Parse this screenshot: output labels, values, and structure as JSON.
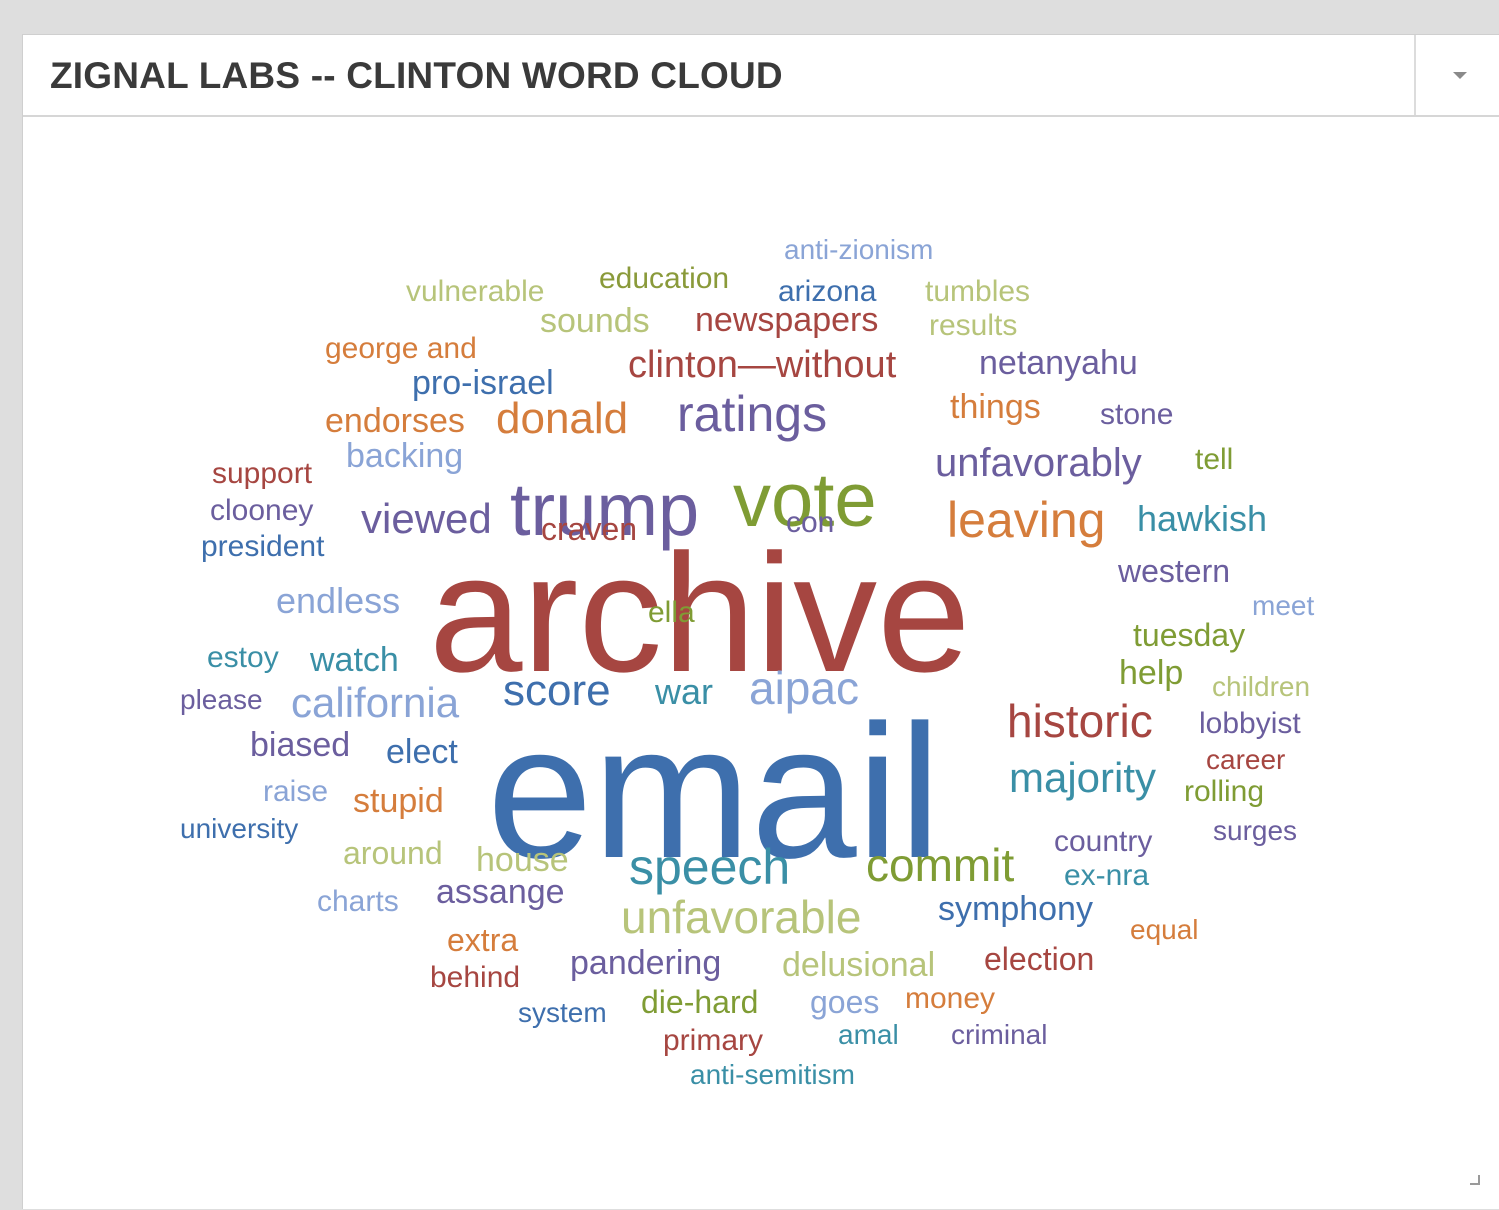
{
  "widget": {
    "title": "ZIGNAL LABS -- CLINTON WORD CLOUD",
    "menu_icon": "chevron-down-icon",
    "resize_icon": "resize-handle-icon"
  },
  "colors": {
    "red": "#a64641",
    "blue": "#3e6fad",
    "purple": "#6b5e9e",
    "green": "#7f9c34",
    "orange": "#d57d3c",
    "teal": "#3a8fa6",
    "light_green": "#b7c47a",
    "light_blue": "#8aa4d6",
    "olive": "#8a9a3a"
  },
  "word_cloud": {
    "words": [
      {
        "text": "archive",
        "color": "red",
        "weight": 100
      },
      {
        "text": "email",
        "color": "blue",
        "weight": 95
      },
      {
        "text": "vote",
        "color": "green",
        "weight": 50
      },
      {
        "text": "trump",
        "color": "purple",
        "weight": 48
      },
      {
        "text": "ratings",
        "color": "purple",
        "weight": 38
      },
      {
        "text": "leaving",
        "color": "orange",
        "weight": 36
      },
      {
        "text": "speech",
        "color": "teal",
        "weight": 36
      },
      {
        "text": "commit",
        "color": "green",
        "weight": 34
      },
      {
        "text": "historic",
        "color": "red",
        "weight": 34
      },
      {
        "text": "unfavorable",
        "color": "light_green",
        "weight": 34
      },
      {
        "text": "donald",
        "color": "orange",
        "weight": 32
      },
      {
        "text": "aipac",
        "color": "light_blue",
        "weight": 34
      },
      {
        "text": "score",
        "color": "blue",
        "weight": 32
      },
      {
        "text": "viewed",
        "color": "purple",
        "weight": 30
      },
      {
        "text": "california",
        "color": "light_blue",
        "weight": 30
      },
      {
        "text": "majority",
        "color": "teal",
        "weight": 30
      },
      {
        "text": "unfavorably",
        "color": "purple",
        "weight": 30
      },
      {
        "text": "clinton—without",
        "color": "red",
        "weight": 28
      },
      {
        "text": "endless",
        "color": "light_blue",
        "weight": 26
      },
      {
        "text": "war",
        "color": "teal",
        "weight": 26
      },
      {
        "text": "hawkish",
        "color": "teal",
        "weight": 26
      },
      {
        "text": "backing",
        "color": "light_blue",
        "weight": 24
      },
      {
        "text": "newspapers",
        "color": "red",
        "weight": 24
      },
      {
        "text": "netanyahu",
        "color": "purple",
        "weight": 24
      },
      {
        "text": "things",
        "color": "orange",
        "weight": 24
      },
      {
        "text": "pro-israel",
        "color": "blue",
        "weight": 24
      },
      {
        "text": "endorses",
        "color": "orange",
        "weight": 24
      },
      {
        "text": "sounds",
        "color": "light_green",
        "weight": 24
      },
      {
        "text": "craven",
        "color": "red",
        "weight": 24
      },
      {
        "text": "western",
        "color": "purple",
        "weight": 24
      },
      {
        "text": "tuesday",
        "color": "green",
        "weight": 24
      },
      {
        "text": "help",
        "color": "green",
        "weight": 24
      },
      {
        "text": "biased",
        "color": "purple",
        "weight": 24
      },
      {
        "text": "elect",
        "color": "blue",
        "weight": 24
      },
      {
        "text": "stupid",
        "color": "orange",
        "weight": 24
      },
      {
        "text": "assange",
        "color": "purple",
        "weight": 24
      },
      {
        "text": "symphony",
        "color": "blue",
        "weight": 24
      },
      {
        "text": "house",
        "color": "light_green",
        "weight": 24
      },
      {
        "text": "pandering",
        "color": "purple",
        "weight": 24
      },
      {
        "text": "delusional",
        "color": "light_green",
        "weight": 24
      },
      {
        "text": "election",
        "color": "red",
        "weight": 24
      },
      {
        "text": "die-hard",
        "color": "green",
        "weight": 24
      },
      {
        "text": "watch",
        "color": "teal",
        "weight": 24
      },
      {
        "text": "estoy",
        "color": "teal",
        "weight": 22
      },
      {
        "text": "president",
        "color": "blue",
        "weight": 22
      },
      {
        "text": "clooney",
        "color": "purple",
        "weight": 22
      },
      {
        "text": "support",
        "color": "red",
        "weight": 22
      },
      {
        "text": "george and",
        "color": "orange",
        "weight": 22
      },
      {
        "text": "vulnerable",
        "color": "light_green",
        "weight": 22
      },
      {
        "text": "education",
        "color": "olive",
        "weight": 22
      },
      {
        "text": "anti-zionism",
        "color": "light_blue",
        "weight": 22
      },
      {
        "text": "arizona",
        "color": "blue",
        "weight": 22
      },
      {
        "text": "tumbles",
        "color": "light_green",
        "weight": 22
      },
      {
        "text": "results",
        "color": "light_green",
        "weight": 22
      },
      {
        "text": "stone",
        "color": "purple",
        "weight": 22
      },
      {
        "text": "tell",
        "color": "green",
        "weight": 22
      },
      {
        "text": "con",
        "color": "purple",
        "weight": 22
      },
      {
        "text": "ella",
        "color": "green",
        "weight": 22
      },
      {
        "text": "meet",
        "color": "light_blue",
        "weight": 20
      },
      {
        "text": "children",
        "color": "light_green",
        "weight": 20
      },
      {
        "text": "lobbyist",
        "color": "purple",
        "weight": 22
      },
      {
        "text": "career",
        "color": "red",
        "weight": 20
      },
      {
        "text": "rolling",
        "color": "green",
        "weight": 22
      },
      {
        "text": "surges",
        "color": "purple",
        "weight": 20
      },
      {
        "text": "country",
        "color": "purple",
        "weight": 22
      },
      {
        "text": "ex-nra",
        "color": "teal",
        "weight": 22
      },
      {
        "text": "equal",
        "color": "orange",
        "weight": 20
      },
      {
        "text": "please",
        "color": "purple",
        "weight": 20
      },
      {
        "text": "raise",
        "color": "light_blue",
        "weight": 20
      },
      {
        "text": "university",
        "color": "blue",
        "weight": 20
      },
      {
        "text": "around",
        "color": "light_green",
        "weight": 22
      },
      {
        "text": "charts",
        "color": "light_blue",
        "weight": 20
      },
      {
        "text": "extra",
        "color": "orange",
        "weight": 22
      },
      {
        "text": "behind",
        "color": "red",
        "weight": 20
      },
      {
        "text": "system",
        "color": "blue",
        "weight": 20
      },
      {
        "text": "goes",
        "color": "light_blue",
        "weight": 22
      },
      {
        "text": "money",
        "color": "orange",
        "weight": 22
      },
      {
        "text": "primary",
        "color": "red",
        "weight": 22
      },
      {
        "text": "amal",
        "color": "teal",
        "weight": 20
      },
      {
        "text": "criminal",
        "color": "purple",
        "weight": 20
      },
      {
        "text": "anti-semitism",
        "color": "teal",
        "weight": 20
      }
    ]
  }
}
